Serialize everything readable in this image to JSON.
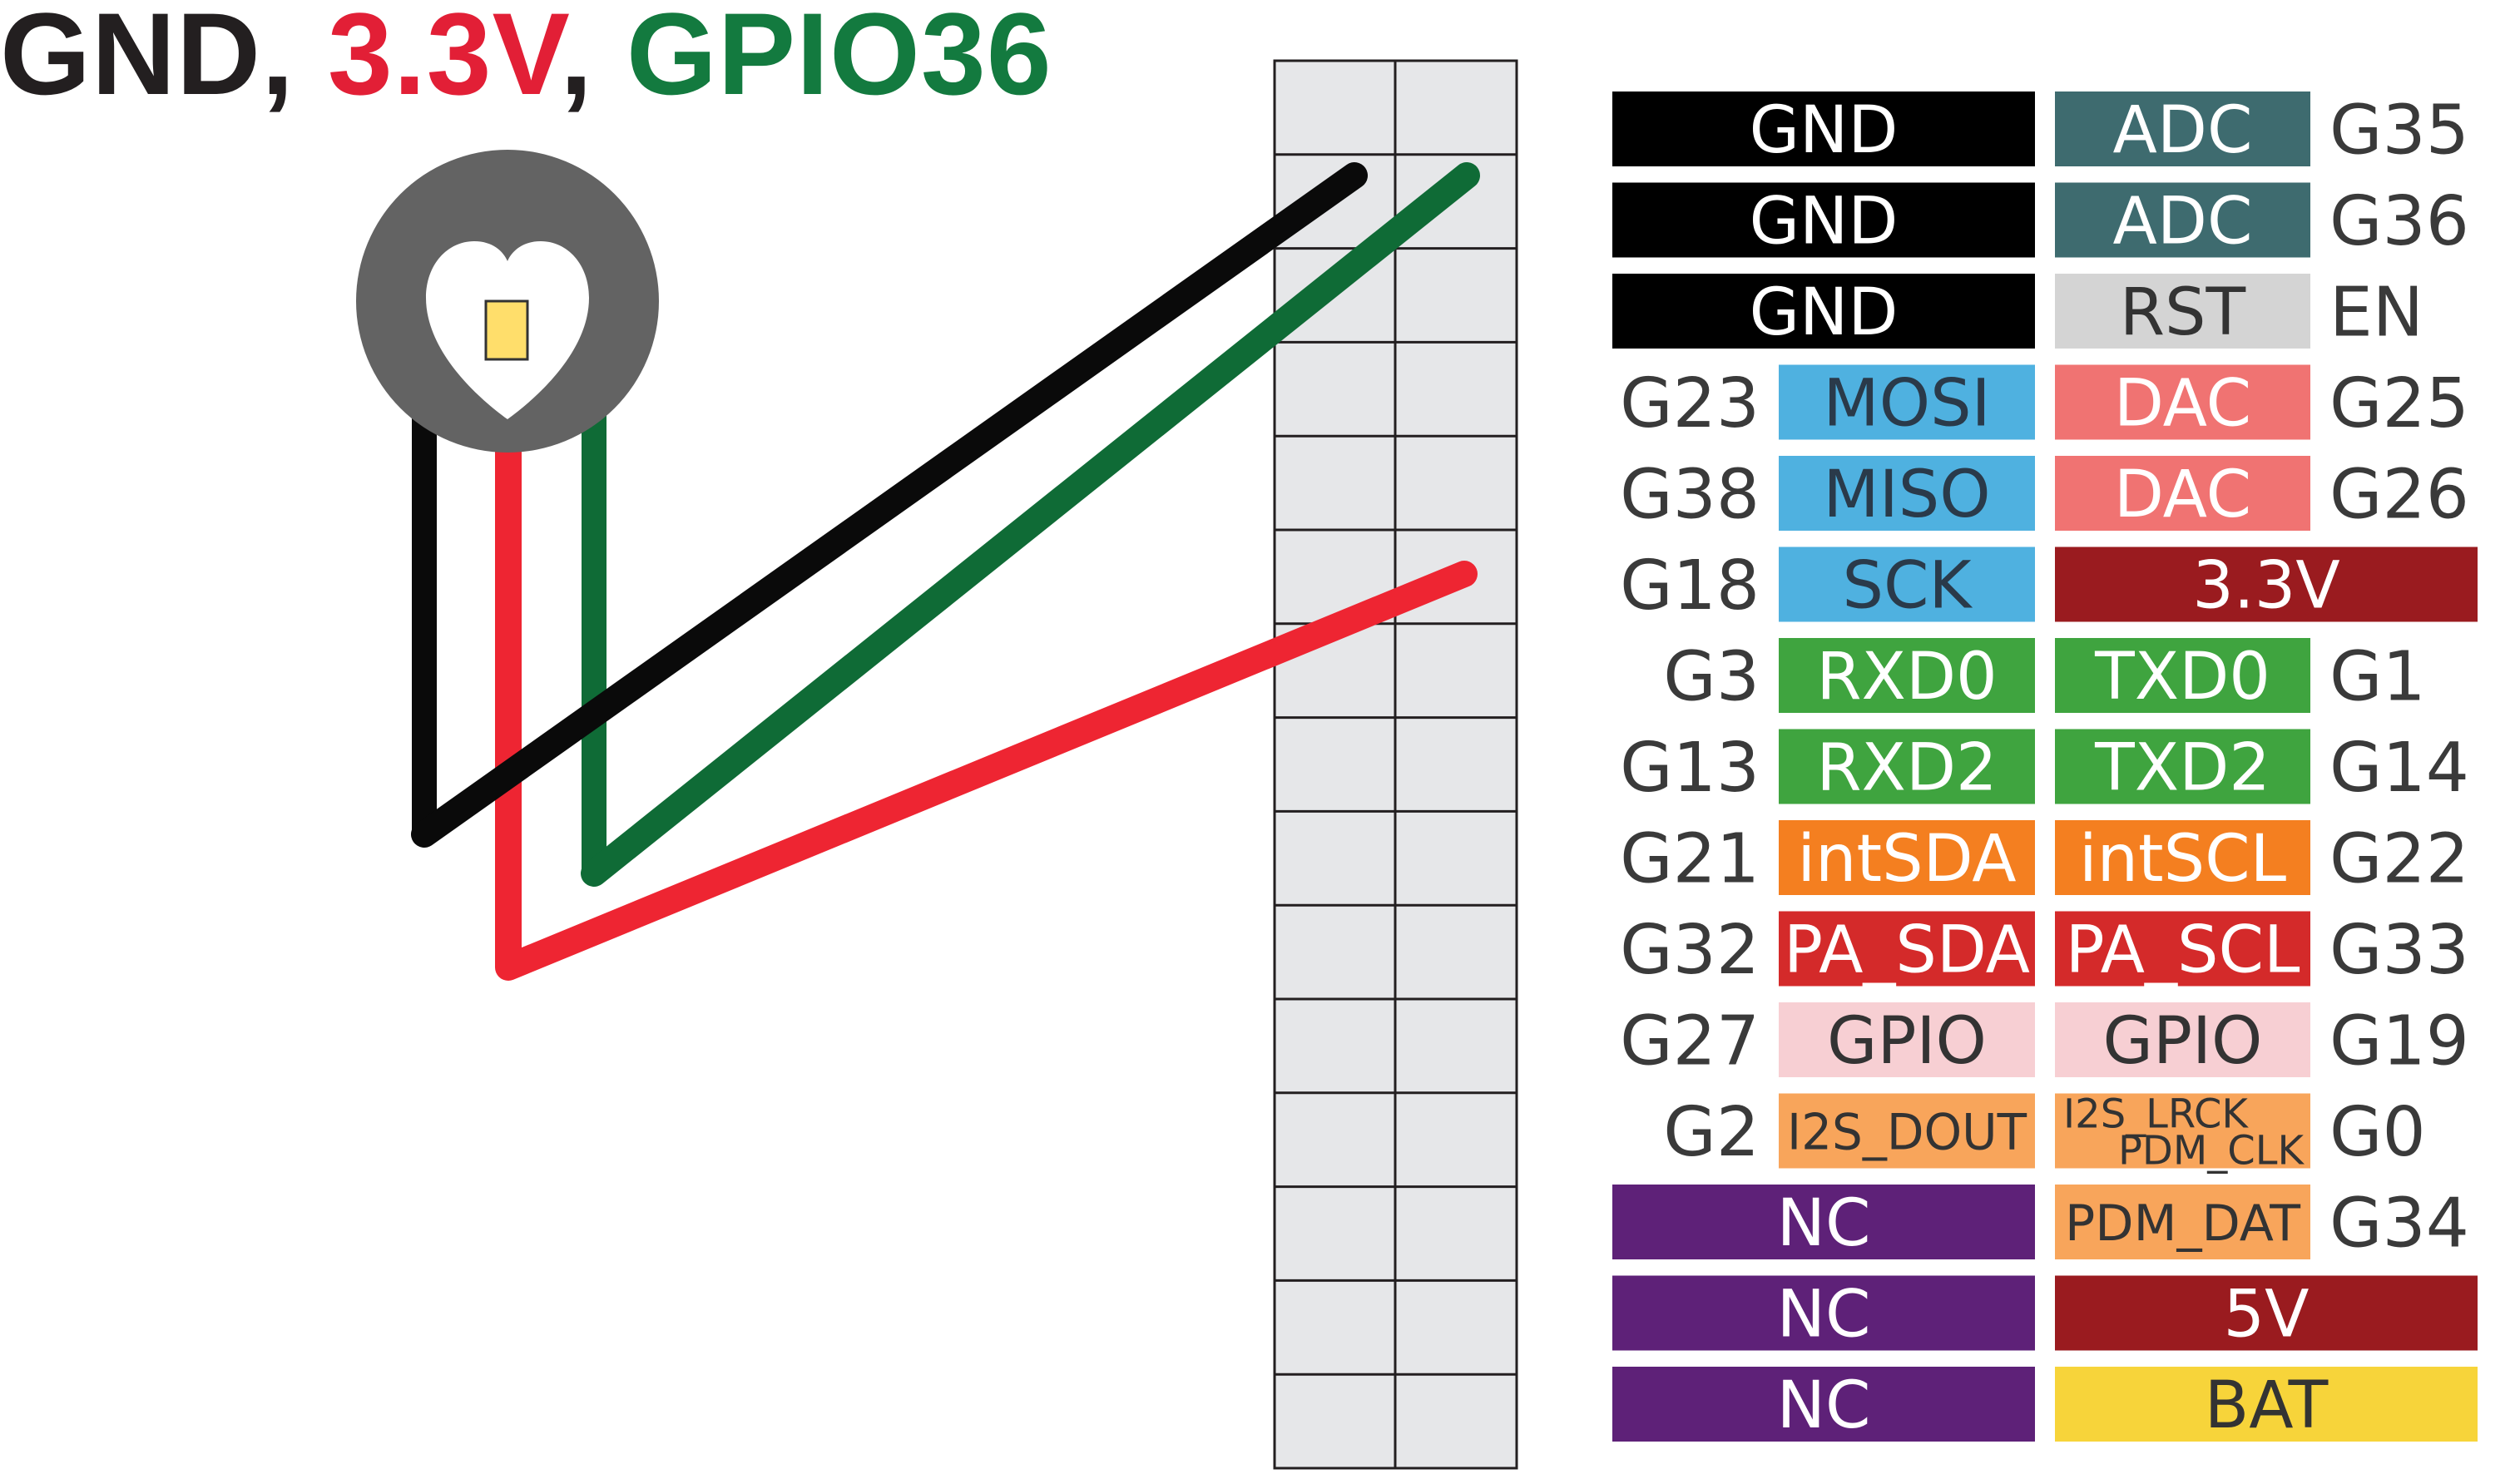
{
  "title": {
    "gnd": "GND",
    "sep1": ", ",
    "v33": "3.3V",
    "sep2": ", ",
    "gpio": "GPIO36",
    "colors": {
      "gnd": "#231f20",
      "v33": "#e21f36",
      "gpio": "#137a3f"
    }
  },
  "wire_colors": {
    "gnd": "#0a0a0a",
    "power": "#ee2532",
    "signal": "#0f6b36"
  },
  "sensor_colors": {
    "body": "#636363",
    "heart": "#ffffff",
    "led": "#ffde6b"
  },
  "pin_rows": [
    {
      "left_gpio": "",
      "left_label": "GND",
      "left_color": "#000000",
      "left_text": "#ffffff",
      "left_wide": true,
      "right_label": "ADC",
      "right_color": "#3e6b6f",
      "right_text": "#ffffff",
      "right_wide": false,
      "right_gpio": "G35"
    },
    {
      "left_gpio": "",
      "left_label": "GND",
      "left_color": "#000000",
      "left_text": "#ffffff",
      "left_wide": true,
      "right_label": "ADC",
      "right_color": "#3e6b6f",
      "right_text": "#ffffff",
      "right_wide": false,
      "right_gpio": "G36"
    },
    {
      "left_gpio": "",
      "left_label": "GND",
      "left_color": "#000000",
      "left_text": "#ffffff",
      "left_wide": true,
      "right_label": "RST",
      "right_color": "#d4d4d4",
      "right_text": "#333333",
      "right_wide": false,
      "right_gpio": "EN"
    },
    {
      "left_gpio": "G23",
      "left_label": "MOSI",
      "left_color": "#4fb1e0",
      "left_text": "#2a3a4a",
      "left_wide": false,
      "right_label": "DAC",
      "right_color": "#f07372",
      "right_text": "#ffffff",
      "right_wide": false,
      "right_gpio": "G25"
    },
    {
      "left_gpio": "G38",
      "left_label": "MISO",
      "left_color": "#4fb1e0",
      "left_text": "#2a3a4a",
      "left_wide": false,
      "right_label": "DAC",
      "right_color": "#f07372",
      "right_text": "#ffffff",
      "right_wide": false,
      "right_gpio": "G26"
    },
    {
      "left_gpio": "G18",
      "left_label": "SCK",
      "left_color": "#4fb1e0",
      "left_text": "#2a3a4a",
      "left_wide": false,
      "right_label": "3.3V",
      "right_color": "#9a1b1f",
      "right_text": "#ffffff",
      "right_wide": true,
      "right_gpio": ""
    },
    {
      "left_gpio": "G3",
      "left_label": "RXD0",
      "left_color": "#3fa43f",
      "left_text": "#ffffff",
      "left_wide": false,
      "right_label": "TXD0",
      "right_color": "#3fa43f",
      "right_text": "#ffffff",
      "right_wide": false,
      "right_gpio": "G1"
    },
    {
      "left_gpio": "G13",
      "left_label": "RXD2",
      "left_color": "#3fa43f",
      "left_text": "#ffffff",
      "left_wide": false,
      "right_label": "TXD2",
      "right_color": "#3fa43f",
      "right_text": "#ffffff",
      "right_wide": false,
      "right_gpio": "G14"
    },
    {
      "left_gpio": "G21",
      "left_label": "intSDA",
      "left_color": "#f47f20",
      "left_text": "#ffffff",
      "left_wide": false,
      "right_label": "intSCL",
      "right_color": "#f47f20",
      "right_text": "#ffffff",
      "right_wide": false,
      "right_gpio": "G22"
    },
    {
      "left_gpio": "G32",
      "left_label": "PA_SDA",
      "left_color": "#d42a2a",
      "left_text": "#ffffff",
      "left_wide": false,
      "right_label": "PA_SCL",
      "right_color": "#d42a2a",
      "right_text": "#ffffff",
      "right_wide": false,
      "right_gpio": "G33"
    },
    {
      "left_gpio": "G27",
      "left_label": "GPIO",
      "left_color": "#f7cfd3",
      "left_text": "#333333",
      "left_wide": false,
      "right_label": "GPIO",
      "right_color": "#f7cfd3",
      "right_text": "#333333",
      "right_wide": false,
      "right_gpio": "G19"
    },
    {
      "left_gpio": "G2",
      "left_label": "I2S_DOUT",
      "left_color": "#f8a55b",
      "left_text": "#333333",
      "left_wide": false,
      "right_label": "I2S_LRCK",
      "right_label2": "PDM_CLK",
      "right_color": "#f8a55b",
      "right_text": "#333333",
      "right_wide": false,
      "right_gpio": "G0"
    },
    {
      "left_gpio": "",
      "left_label": "NC",
      "left_color": "#5e2178",
      "left_text": "#ffffff",
      "left_wide": true,
      "right_label": "PDM_DAT",
      "right_color": "#f8a55b",
      "right_text": "#333333",
      "right_wide": false,
      "right_gpio": "G34"
    },
    {
      "left_gpio": "",
      "left_label": "NC",
      "left_color": "#5e2178",
      "left_text": "#ffffff",
      "left_wide": true,
      "right_label": "5V",
      "right_color": "#9a1b1f",
      "right_text": "#ffffff",
      "right_wide": true,
      "right_gpio": ""
    },
    {
      "left_gpio": "",
      "left_label": "NC",
      "left_color": "#5e2178",
      "left_text": "#ffffff",
      "left_wide": true,
      "right_label": "BAT",
      "right_color": "#f7d43a",
      "right_text": "#333333",
      "right_wide": true,
      "right_gpio": ""
    }
  ],
  "header_colors": {
    "fill": "#e6e7e9",
    "line": "#231f20"
  }
}
